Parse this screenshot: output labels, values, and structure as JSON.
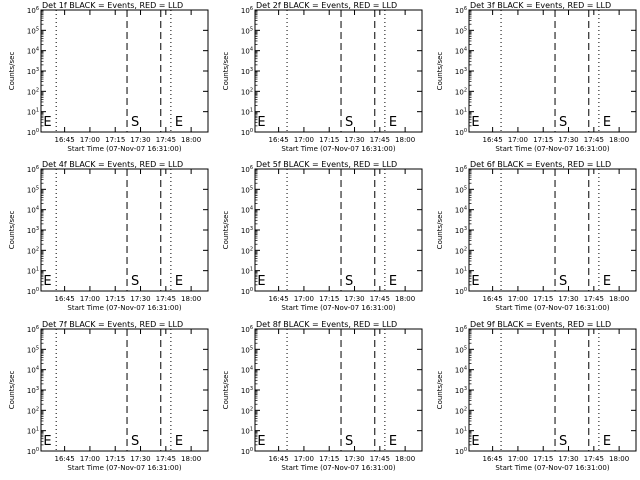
{
  "figure": {
    "x_label": "Start Time (07-Nov-07 16:31:00)",
    "y_label": "Counts/sec"
  },
  "chart_data": [
    {
      "type": "line",
      "title": "Det 1f BLACK = Events, RED = LLD",
      "xlabel": "Start Time (07-Nov-07 16:31:00)",
      "ylabel": "Counts/sec",
      "x_ticks": [
        "16:45",
        "17:00",
        "17:15",
        "17:30",
        "17:45",
        "18:00"
      ],
      "y_ticks": [
        "10^0",
        "10^1",
        "10^2",
        "10^3",
        "10^4",
        "10^5",
        "10^6"
      ],
      "yscale": "log",
      "ylim": [
        1,
        1000000
      ],
      "xlim": [
        "16:31",
        "18:10"
      ],
      "series": [],
      "markers": [
        {
          "label": "",
          "x": "16:40",
          "style": "dotted"
        },
        {
          "label": "S",
          "x": "17:22",
          "style": "dashed"
        },
        {
          "label": "",
          "x": "17:42",
          "style": "dashed"
        },
        {
          "label": "E",
          "x": "17:48",
          "style": "dotted"
        }
      ],
      "annotations": [
        {
          "text": "E",
          "x": "16:33"
        }
      ]
    },
    {
      "type": "line",
      "title": "Det 2f BLACK = Events, RED = LLD",
      "xlabel": "Start Time (07-Nov-07 16:31:00)",
      "ylabel": "Counts/sec",
      "x_ticks": [
        "16:45",
        "17:00",
        "17:15",
        "17:30",
        "17:45",
        "18:00"
      ],
      "y_ticks": [
        "10^0",
        "10^1",
        "10^2",
        "10^3",
        "10^4",
        "10^5",
        "10^6"
      ],
      "yscale": "log",
      "ylim": [
        1,
        1000000
      ],
      "xlim": [
        "16:31",
        "18:10"
      ],
      "series": [],
      "markers": [
        {
          "label": "",
          "x": "16:50",
          "style": "dotted"
        },
        {
          "label": "S",
          "x": "17:22",
          "style": "dashed"
        },
        {
          "label": "",
          "x": "17:42",
          "style": "dashed"
        },
        {
          "label": "E",
          "x": "17:48",
          "style": "dotted"
        }
      ],
      "annotations": [
        {
          "text": "E",
          "x": "16:33"
        }
      ]
    },
    {
      "type": "line",
      "title": "Det 3f BLACK = Events, RED = LLD",
      "xlabel": "Start Time (07-Nov-07 16:31:00)",
      "ylabel": "Counts/sec",
      "x_ticks": [
        "16:45",
        "17:00",
        "17:15",
        "17:30",
        "17:45",
        "18:00"
      ],
      "y_ticks": [
        "10^0",
        "10^1",
        "10^2",
        "10^3",
        "10^4",
        "10^5",
        "10^6"
      ],
      "yscale": "log",
      "ylim": [
        1,
        1000000
      ],
      "xlim": [
        "16:31",
        "18:10"
      ],
      "series": [],
      "markers": [
        {
          "label": "",
          "x": "16:50",
          "style": "dotted"
        },
        {
          "label": "S",
          "x": "17:22",
          "style": "dashed"
        },
        {
          "label": "",
          "x": "17:42",
          "style": "dashed"
        },
        {
          "label": "E",
          "x": "17:48",
          "style": "dotted"
        }
      ],
      "annotations": [
        {
          "text": "E",
          "x": "16:33"
        }
      ]
    },
    {
      "type": "line",
      "title": "Det 4f BLACK = Events, RED = LLD",
      "xlabel": "Start Time (07-Nov-07 16:31:00)",
      "ylabel": "Counts/sec",
      "x_ticks": [
        "16:45",
        "17:00",
        "17:15",
        "17:30",
        "17:45",
        "18:00"
      ],
      "y_ticks": [
        "10^0",
        "10^1",
        "10^2",
        "10^3",
        "10^4",
        "10^5",
        "10^6"
      ],
      "yscale": "log",
      "ylim": [
        1,
        1000000
      ],
      "xlim": [
        "16:31",
        "18:10"
      ],
      "series": [],
      "markers": [
        {
          "label": "",
          "x": "16:40",
          "style": "dotted"
        },
        {
          "label": "S",
          "x": "17:22",
          "style": "dashed"
        },
        {
          "label": "",
          "x": "17:42",
          "style": "dashed"
        },
        {
          "label": "E",
          "x": "17:48",
          "style": "dotted"
        }
      ],
      "annotations": [
        {
          "text": "E",
          "x": "16:33"
        }
      ]
    },
    {
      "type": "line",
      "title": "Det 5f BLACK = Events, RED = LLD",
      "xlabel": "Start Time (07-Nov-07 16:31:00)",
      "ylabel": "Counts/sec",
      "x_ticks": [
        "16:45",
        "17:00",
        "17:15",
        "17:30",
        "17:45",
        "18:00"
      ],
      "y_ticks": [
        "10^0",
        "10^1",
        "10^2",
        "10^3",
        "10^4",
        "10^5",
        "10^6"
      ],
      "yscale": "log",
      "ylim": [
        1,
        1000000
      ],
      "xlim": [
        "16:31",
        "18:10"
      ],
      "series": [],
      "markers": [
        {
          "label": "",
          "x": "16:50",
          "style": "dotted"
        },
        {
          "label": "S",
          "x": "17:22",
          "style": "dashed"
        },
        {
          "label": "",
          "x": "17:42",
          "style": "dashed"
        },
        {
          "label": "E",
          "x": "17:48",
          "style": "dotted"
        }
      ],
      "annotations": [
        {
          "text": "E",
          "x": "16:33"
        }
      ]
    },
    {
      "type": "line",
      "title": "Det 6f BLACK = Events, RED = LLD",
      "xlabel": "Start Time (07-Nov-07 16:31:00)",
      "ylabel": "Counts/sec",
      "x_ticks": [
        "16:45",
        "17:00",
        "17:15",
        "17:30",
        "17:45",
        "18:00"
      ],
      "y_ticks": [
        "10^0",
        "10^1",
        "10^2",
        "10^3",
        "10^4",
        "10^5",
        "10^6"
      ],
      "yscale": "log",
      "ylim": [
        1,
        1000000
      ],
      "xlim": [
        "16:31",
        "18:10"
      ],
      "series": [],
      "markers": [
        {
          "label": "",
          "x": "16:50",
          "style": "dotted"
        },
        {
          "label": "S",
          "x": "17:22",
          "style": "dashed"
        },
        {
          "label": "",
          "x": "17:42",
          "style": "dashed"
        },
        {
          "label": "E",
          "x": "17:48",
          "style": "dotted"
        }
      ],
      "annotations": [
        {
          "text": "E",
          "x": "16:33"
        }
      ]
    },
    {
      "type": "line",
      "title": "Det 7f BLACK = Events, RED = LLD",
      "xlabel": "Start Time (07-Nov-07 16:31:00)",
      "ylabel": "Counts/sec",
      "x_ticks": [
        "16:45",
        "17:00",
        "17:15",
        "17:30",
        "17:45",
        "18:00"
      ],
      "y_ticks": [
        "10^0",
        "10^1",
        "10^2",
        "10^3",
        "10^4",
        "10^5",
        "10^6"
      ],
      "yscale": "log",
      "ylim": [
        1,
        1000000
      ],
      "xlim": [
        "16:31",
        "18:10"
      ],
      "series": [],
      "markers": [
        {
          "label": "",
          "x": "16:40",
          "style": "dotted"
        },
        {
          "label": "S",
          "x": "17:22",
          "style": "dashed"
        },
        {
          "label": "",
          "x": "17:42",
          "style": "dashed"
        },
        {
          "label": "E",
          "x": "17:48",
          "style": "dotted"
        }
      ],
      "annotations": [
        {
          "text": "E",
          "x": "16:33"
        }
      ]
    },
    {
      "type": "line",
      "title": "Det 8f BLACK = Events, RED = LLD",
      "xlabel": "Start Time (07-Nov-07 16:31:00)",
      "ylabel": "Counts/sec",
      "x_ticks": [
        "16:45",
        "17:00",
        "17:15",
        "17:30",
        "17:45",
        "18:00"
      ],
      "y_ticks": [
        "10^0",
        "10^1",
        "10^2",
        "10^3",
        "10^4",
        "10^5",
        "10^6"
      ],
      "yscale": "log",
      "ylim": [
        1,
        1000000
      ],
      "xlim": [
        "16:31",
        "18:10"
      ],
      "series": [],
      "markers": [
        {
          "label": "",
          "x": "16:50",
          "style": "dotted"
        },
        {
          "label": "S",
          "x": "17:22",
          "style": "dashed"
        },
        {
          "label": "",
          "x": "17:42",
          "style": "dashed"
        },
        {
          "label": "E",
          "x": "17:48",
          "style": "dotted"
        }
      ],
      "annotations": [
        {
          "text": "E",
          "x": "16:33"
        }
      ]
    },
    {
      "type": "line",
      "title": "Det 9f BLACK = Events, RED = LLD",
      "xlabel": "Start Time (07-Nov-07 16:31:00)",
      "ylabel": "Counts/sec",
      "x_ticks": [
        "16:45",
        "17:00",
        "17:15",
        "17:30",
        "17:45",
        "18:00"
      ],
      "y_ticks": [
        "10^0",
        "10^1",
        "10^2",
        "10^3",
        "10^4",
        "10^5",
        "10^6"
      ],
      "yscale": "log",
      "ylim": [
        1,
        1000000
      ],
      "xlim": [
        "16:31",
        "18:10"
      ],
      "series": [],
      "markers": [
        {
          "label": "",
          "x": "16:50",
          "style": "dotted"
        },
        {
          "label": "S",
          "x": "17:22",
          "style": "dashed"
        },
        {
          "label": "",
          "x": "17:42",
          "style": "dashed"
        },
        {
          "label": "E",
          "x": "17:48",
          "style": "dotted"
        }
      ],
      "annotations": [
        {
          "text": "E",
          "x": "16:33"
        }
      ]
    }
  ]
}
